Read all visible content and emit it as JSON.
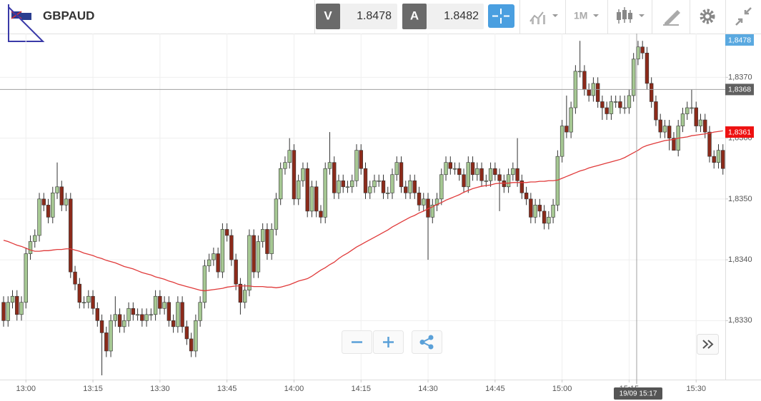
{
  "header": {
    "symbol": "GBPAUD",
    "sell_label": "V",
    "sell_price": 1.8478,
    "buy_label": "A",
    "buy_price": 1.8482,
    "timeframe": "1M"
  },
  "chart_data": {
    "type": "candlestick",
    "categories": [
      null,
      null,
      null,
      null,
      null,
      "13:00",
      null,
      null,
      null,
      null,
      null,
      null,
      null,
      null,
      null,
      null,
      null,
      null,
      null,
      null,
      "13:15",
      null,
      null,
      null,
      null,
      null,
      null,
      null,
      null,
      null,
      null,
      null,
      null,
      null,
      null,
      "13:30",
      null,
      null,
      null,
      null,
      null,
      null,
      null,
      null,
      null,
      null,
      null,
      null,
      null,
      null,
      "13:45",
      null,
      null,
      null,
      null,
      null,
      null,
      null,
      null,
      null,
      null,
      null,
      null,
      null,
      null,
      "14:00",
      null,
      null,
      null,
      null,
      null,
      null,
      null,
      null,
      null,
      null,
      null,
      null,
      null,
      null,
      "14:15",
      null,
      null,
      null,
      null,
      null,
      null,
      null,
      null,
      null,
      null,
      null,
      null,
      null,
      null,
      "14:30",
      null,
      null,
      null,
      null,
      null,
      null,
      null,
      null,
      null,
      null,
      null,
      null,
      null,
      null,
      "14:45",
      null,
      null,
      null,
      null,
      null,
      null,
      null,
      null,
      null,
      null,
      null,
      null,
      null,
      null,
      "15:00",
      null,
      null,
      null,
      null,
      null,
      null,
      null,
      null,
      null,
      null,
      null,
      null,
      null,
      null,
      "15:15",
      null,
      null,
      null,
      null,
      null,
      null,
      null,
      null,
      null,
      null,
      null,
      null,
      null,
      null,
      "15:30",
      null,
      null,
      null,
      null,
      null,
      null
    ],
    "open": [
      1.8333,
      1.833,
      1.8333,
      1.8334,
      1.8331,
      1.8333,
      1.8341,
      1.8343,
      1.8344,
      1.835,
      1.8349,
      1.8347,
      1.8351,
      1.8352,
      1.8349,
      1.835,
      1.8338,
      1.8336,
      1.8333,
      1.8333,
      1.8334,
      1.8332,
      1.833,
      1.8328,
      1.8325,
      1.833,
      1.8331,
      1.8329,
      1.833,
      1.8332,
      1.8331,
      1.8331,
      1.833,
      1.8331,
      1.8331,
      1.8334,
      1.8332,
      1.8333,
      1.833,
      1.8329,
      1.8333,
      1.8329,
      1.8327,
      1.8325,
      1.833,
      1.8333,
      1.8339,
      1.834,
      1.8341,
      1.8338,
      1.8345,
      1.8344,
      1.834,
      1.8336,
      1.8333,
      1.8335,
      1.8344,
      1.8338,
      1.8343,
      1.8345,
      1.8341,
      1.8345,
      1.835,
      1.8355,
      1.8356,
      1.8358,
      1.835,
      1.8353,
      1.8355,
      1.8348,
      1.8352,
      1.8348,
      1.8347,
      1.8355,
      1.8356,
      1.8351,
      1.8353,
      1.8352,
      1.8352,
      1.8353,
      1.8358,
      1.8355,
      1.8351,
      1.8352,
      1.8353,
      1.8353,
      1.8351,
      1.8351,
      1.8354,
      1.8356,
      1.8352,
      1.8351,
      1.8353,
      1.8351,
      1.8349,
      1.835,
      1.8347,
      1.8349,
      1.835,
      1.8354,
      1.8356,
      1.8355,
      1.8355,
      1.8354,
      1.8352,
      1.8356,
      1.8354,
      1.8355,
      1.8353,
      1.8353,
      1.8355,
      1.8354,
      1.8353,
      1.8352,
      1.8354,
      1.8355,
      1.8353,
      1.8351,
      1.835,
      1.8347,
      1.8349,
      1.8348,
      1.8346,
      1.8347,
      1.8349,
      1.8357,
      1.8362,
      1.8361,
      1.8365,
      1.8371,
      1.8371,
      1.8368,
      1.8367,
      1.8369,
      1.8366,
      1.8365,
      1.8364,
      1.8366,
      1.8366,
      1.8365,
      1.8365,
      1.8367,
      1.8373,
      1.8375,
      1.8374,
      1.8369,
      1.8366,
      1.8363,
      1.8361,
      1.8362,
      1.836,
      1.8358,
      1.8362,
      1.8364,
      1.8365,
      1.8365,
      1.8362,
      1.8363,
      1.8361,
      1.8357,
      1.8356,
      1.8358
    ],
    "high": [
      1.8334,
      1.8334,
      1.8335,
      1.8335,
      1.8334,
      1.8342,
      1.8344,
      1.8345,
      1.8351,
      1.8351,
      1.835,
      1.8352,
      1.8356,
      1.8353,
      1.8351,
      1.8351,
      1.8339,
      1.8337,
      1.8334,
      1.8335,
      1.8335,
      1.8333,
      1.8331,
      1.8329,
      1.8331,
      1.8334,
      1.8332,
      1.8331,
      1.8333,
      1.8333,
      1.8332,
      1.8332,
      1.8332,
      1.8332,
      1.8335,
      1.8335,
      1.8334,
      1.8334,
      1.8331,
      1.8334,
      1.8334,
      1.833,
      1.8328,
      1.8331,
      1.8334,
      1.834,
      1.8341,
      1.8342,
      1.8342,
      1.8346,
      1.8346,
      1.8345,
      1.8341,
      1.8337,
      1.8336,
      1.8345,
      1.8345,
      1.8344,
      1.8346,
      1.8346,
      1.8346,
      1.8351,
      1.8356,
      1.8357,
      1.836,
      1.8359,
      1.8354,
      1.8356,
      1.8356,
      1.8353,
      1.8353,
      1.8349,
      1.8356,
      1.8361,
      1.8357,
      1.8354,
      1.8354,
      1.8353,
      1.8354,
      1.8359,
      1.8359,
      1.8356,
      1.8353,
      1.8354,
      1.8354,
      1.8354,
      1.8352,
      1.8355,
      1.8357,
      1.8357,
      1.8353,
      1.8354,
      1.8354,
      1.8352,
      1.8351,
      1.8351,
      1.835,
      1.8351,
      1.8355,
      1.8357,
      1.8357,
      1.8356,
      1.8356,
      1.8355,
      1.8357,
      1.8357,
      1.8356,
      1.8356,
      1.8354,
      1.8356,
      1.8356,
      1.8355,
      1.8354,
      1.8355,
      1.8356,
      1.836,
      1.8354,
      1.8352,
      1.8351,
      1.835,
      1.835,
      1.8349,
      1.8348,
      1.835,
      1.8358,
      1.8363,
      1.8367,
      1.8366,
      1.8372,
      1.8376,
      1.8372,
      1.8369,
      1.837,
      1.837,
      1.8367,
      1.8366,
      1.8367,
      1.8367,
      1.8367,
      1.8367,
      1.8368,
      1.8374,
      1.8376,
      1.8376,
      1.8375,
      1.837,
      1.8367,
      1.8364,
      1.8363,
      1.8363,
      1.8361,
      1.8363,
      1.8365,
      1.8366,
      1.8368,
      1.8366,
      1.8364,
      1.8364,
      1.8362,
      1.8358,
      1.8359,
      1.8359
    ],
    "low": [
      1.8329,
      1.8329,
      1.8332,
      1.833,
      1.833,
      1.8332,
      1.834,
      1.8342,
      1.8343,
      1.8348,
      1.8346,
      1.8346,
      1.835,
      1.8348,
      1.8348,
      1.8337,
      1.8335,
      1.8332,
      1.8332,
      1.8332,
      1.8331,
      1.8329,
      1.8321,
      1.8324,
      1.8324,
      1.8329,
      1.8328,
      1.8328,
      1.8329,
      1.833,
      1.833,
      1.8329,
      1.8329,
      1.833,
      1.833,
      1.8331,
      1.8331,
      1.8329,
      1.8328,
      1.8328,
      1.8328,
      1.8326,
      1.8324,
      1.8324,
      1.8329,
      1.8332,
      1.8338,
      1.8339,
      1.8337,
      1.8337,
      1.8343,
      1.8339,
      1.8335,
      1.8331,
      1.8332,
      1.8334,
      1.8337,
      1.8337,
      1.8342,
      1.834,
      1.834,
      1.8344,
      1.8349,
      1.8354,
      1.8355,
      1.8349,
      1.8349,
      1.8352,
      1.8347,
      1.8347,
      1.8347,
      1.8346,
      1.8346,
      1.8354,
      1.835,
      1.835,
      1.8351,
      1.8351,
      1.8351,
      1.8352,
      1.8354,
      1.835,
      1.835,
      1.8351,
      1.8352,
      1.835,
      1.835,
      1.835,
      1.8353,
      1.8351,
      1.835,
      1.835,
      1.835,
      1.8348,
      1.8348,
      1.834,
      1.8346,
      1.8348,
      1.8349,
      1.8353,
      1.8354,
      1.8354,
      1.8353,
      1.8351,
      1.8351,
      1.8353,
      1.8353,
      1.8352,
      1.8352,
      1.8352,
      1.8353,
      1.8348,
      1.8351,
      1.8351,
      1.8353,
      1.8352,
      1.835,
      1.8349,
      1.8346,
      1.8346,
      1.8347,
      1.8345,
      1.8345,
      1.8346,
      1.8348,
      1.8356,
      1.836,
      1.836,
      1.8364,
      1.837,
      1.8367,
      1.8366,
      1.8366,
      1.8365,
      1.8363,
      1.8363,
      1.8363,
      1.8365,
      1.8364,
      1.8364,
      1.8364,
      1.8366,
      1.8372,
      1.8373,
      1.8368,
      1.8365,
      1.8362,
      1.836,
      1.836,
      1.8358,
      1.8358,
      1.8357,
      1.8361,
      1.8363,
      1.8364,
      1.8361,
      1.8361,
      1.836,
      1.8356,
      1.8355,
      1.8355,
      1.8354
    ],
    "close": [
      1.833,
      1.8333,
      1.8334,
      1.8331,
      1.8333,
      1.8341,
      1.8343,
      1.8344,
      1.835,
      1.8349,
      1.8347,
      1.8351,
      1.8352,
      1.8349,
      1.835,
      1.8338,
      1.8336,
      1.8333,
      1.8333,
      1.8334,
      1.8332,
      1.833,
      1.8328,
      1.8325,
      1.833,
      1.8331,
      1.8329,
      1.833,
      1.8332,
      1.8331,
      1.8331,
      1.833,
      1.8331,
      1.8331,
      1.8334,
      1.8332,
      1.8333,
      1.833,
      1.8329,
      1.8333,
      1.8329,
      1.8327,
      1.8325,
      1.833,
      1.8333,
      1.8339,
      1.834,
      1.8341,
      1.8338,
      1.8345,
      1.8344,
      1.834,
      1.8336,
      1.8333,
      1.8335,
      1.8344,
      1.8338,
      1.8343,
      1.8345,
      1.8341,
      1.8345,
      1.835,
      1.8355,
      1.8356,
      1.8358,
      1.835,
      1.8353,
      1.8355,
      1.8348,
      1.8352,
      1.8348,
      1.8347,
      1.8355,
      1.8356,
      1.8351,
      1.8353,
      1.8352,
      1.8352,
      1.8353,
      1.8358,
      1.8355,
      1.8351,
      1.8352,
      1.8353,
      1.8353,
      1.8351,
      1.8351,
      1.8354,
      1.8356,
      1.8352,
      1.8351,
      1.8353,
      1.8351,
      1.8349,
      1.835,
      1.8347,
      1.8349,
      1.835,
      1.8354,
      1.8356,
      1.8355,
      1.8355,
      1.8354,
      1.8352,
      1.8356,
      1.8354,
      1.8355,
      1.8353,
      1.8353,
      1.8355,
      1.8354,
      1.8353,
      1.8352,
      1.8354,
      1.8355,
      1.8353,
      1.8351,
      1.835,
      1.8347,
      1.8349,
      1.8348,
      1.8346,
      1.8347,
      1.8349,
      1.8357,
      1.8362,
      1.8361,
      1.8365,
      1.8371,
      1.8371,
      1.8368,
      1.8367,
      1.8369,
      1.8366,
      1.8365,
      1.8364,
      1.8366,
      1.8366,
      1.8365,
      1.8365,
      1.8367,
      1.8373,
      1.8375,
      1.8374,
      1.8369,
      1.8366,
      1.8363,
      1.8361,
      1.8362,
      1.836,
      1.8358,
      1.8362,
      1.8364,
      1.8365,
      1.8365,
      1.8362,
      1.8363,
      1.8361,
      1.8357,
      1.8356,
      1.8358,
      1.8355
    ],
    "up_color": "#a6c893",
    "down_color": "#8c2a1a",
    "wick_color": "#333333",
    "moving_average": {
      "color": "#e03a3a",
      "values": [
        1.83432,
        1.8343,
        1.83427,
        1.83424,
        1.83422,
        1.83419,
        1.83416,
        1.83414,
        1.83414,
        1.83415,
        1.83415,
        1.83416,
        1.83417,
        1.83417,
        1.83418,
        1.83418,
        1.83416,
        1.83414,
        1.83411,
        1.83409,
        1.83407,
        1.83404,
        1.83402,
        1.83399,
        1.83397,
        1.83395,
        1.83392,
        1.83389,
        1.83387,
        1.83385,
        1.83382,
        1.83379,
        1.83377,
        1.83375,
        1.83372,
        1.8337,
        1.83368,
        1.83365,
        1.83363,
        1.8336,
        1.83358,
        1.83356,
        1.83354,
        1.83352,
        1.8335,
        1.83349,
        1.8335,
        1.83351,
        1.83352,
        1.83353,
        1.83355,
        1.83356,
        1.83357,
        1.83357,
        1.83357,
        1.83357,
        1.83356,
        1.83356,
        1.83356,
        1.83355,
        1.83355,
        1.83354,
        1.83355,
        1.83357,
        1.83359,
        1.83362,
        1.83365,
        1.83367,
        1.83369,
        1.83373,
        1.83378,
        1.83383,
        1.83387,
        1.83392,
        1.83396,
        1.83402,
        1.83407,
        1.83411,
        1.83416,
        1.83421,
        1.83425,
        1.83429,
        1.83433,
        1.83437,
        1.83441,
        1.83445,
        1.83449,
        1.83454,
        1.83458,
        1.83462,
        1.83466,
        1.8347,
        1.83473,
        1.83477,
        1.8348,
        1.83484,
        1.83487,
        1.83491,
        1.83494,
        1.83498,
        1.83501,
        1.83504,
        1.83507,
        1.83511,
        1.83514,
        1.83517,
        1.83519,
        1.83521,
        1.83522,
        1.83523,
        1.83525,
        1.83526,
        1.83526,
        1.83526,
        1.83527,
        1.83527,
        1.83527,
        1.83527,
        1.83528,
        1.83528,
        1.83529,
        1.83529,
        1.8353,
        1.8353,
        1.83531,
        1.83534,
        1.83537,
        1.8354,
        1.83543,
        1.83546,
        1.83548,
        1.83551,
        1.83553,
        1.83555,
        1.83557,
        1.83559,
        1.83561,
        1.83563,
        1.83565,
        1.83568,
        1.83572,
        1.83576,
        1.8358,
        1.83585,
        1.83588,
        1.8359,
        1.83592,
        1.83594,
        1.83596,
        1.83597,
        1.83598,
        1.836,
        1.83601,
        1.83602,
        1.83604,
        1.83605,
        1.83606,
        1.83607,
        1.83608,
        1.8361,
        1.83611,
        1.83612
      ]
    },
    "ylim": [
      1.83203,
      1.83772
    ],
    "yticks": [
      {
        "value": 1.833,
        "label": "1,8330"
      },
      {
        "value": 1.834,
        "label": "1,8340"
      },
      {
        "value": 1.835,
        "label": "1,8350"
      },
      {
        "value": 1.836,
        "label": "1,8360"
      },
      {
        "value": 1.837,
        "label": "1,8370"
      }
    ],
    "grid": true,
    "price_markers": [
      {
        "value": 1.8478,
        "label": "1,8478",
        "color": "#5aa9e0"
      },
      {
        "value": 1.8368,
        "label": "1,8368",
        "color": "#5f5f5f"
      },
      {
        "value": 1.8361,
        "label": "1,8361",
        "color": "#ee1111"
      }
    ],
    "crosshair_label": "19/09 15:17"
  }
}
